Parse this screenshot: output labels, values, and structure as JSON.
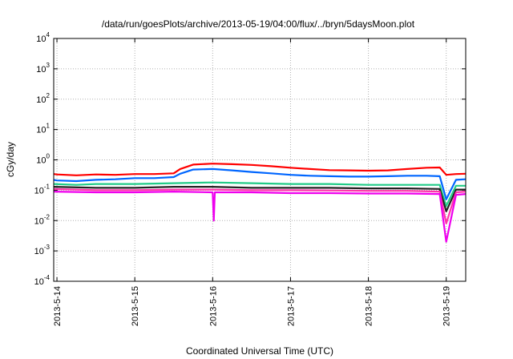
{
  "chart_data": {
    "type": "line",
    "title": "/data/run/goesPlots/archive/2013-05-19/04:00/flux/../bryn/5daysMoon.plot",
    "xlabel": "Coordinated Universal Time (UTC)",
    "ylabel": "cGy/day",
    "yscale": "log",
    "ylim": [
      0.0001,
      10000
    ],
    "xlim": [
      "2013-05-13T23:00",
      "2013-05-19T06:00"
    ],
    "y_ticks": [
      {
        "base": "10",
        "exp": "-4"
      },
      {
        "base": "10",
        "exp": "-3"
      },
      {
        "base": "10",
        "exp": "-2"
      },
      {
        "base": "10",
        "exp": "-1"
      },
      {
        "base": "10",
        "exp": "0"
      },
      {
        "base": "10",
        "exp": "1"
      },
      {
        "base": "10",
        "exp": "2"
      },
      {
        "base": "10",
        "exp": "3"
      },
      {
        "base": "10",
        "exp": "4"
      }
    ],
    "x_ticks": [
      "2013-5-14",
      "2013-5-15",
      "2013-5-16",
      "2013-5-17",
      "2013-5-18",
      "2013-5-19"
    ],
    "grid": true,
    "series": [
      {
        "color": "#ff0000",
        "points": [
          [
            "2013-05-13T23:00",
            0.34
          ],
          [
            "2013-05-14T00:00",
            0.33
          ],
          [
            "2013-05-14T06:00",
            0.31
          ],
          [
            "2013-05-14T12:00",
            0.33
          ],
          [
            "2013-05-14T18:00",
            0.32
          ],
          [
            "2013-05-15T00:00",
            0.34
          ],
          [
            "2013-05-15T06:00",
            0.34
          ],
          [
            "2013-05-15T12:00",
            0.36
          ],
          [
            "2013-05-15T14:00",
            0.5
          ],
          [
            "2013-05-15T18:00",
            0.7
          ],
          [
            "2013-05-16T00:00",
            0.75
          ],
          [
            "2013-05-16T06:00",
            0.72
          ],
          [
            "2013-05-16T12:00",
            0.68
          ],
          [
            "2013-05-16T18:00",
            0.62
          ],
          [
            "2013-05-17T00:00",
            0.55
          ],
          [
            "2013-05-17T06:00",
            0.5
          ],
          [
            "2013-05-17T12:00",
            0.46
          ],
          [
            "2013-05-17T18:00",
            0.45
          ],
          [
            "2013-05-18T00:00",
            0.44
          ],
          [
            "2013-05-18T06:00",
            0.45
          ],
          [
            "2013-05-18T12:00",
            0.5
          ],
          [
            "2013-05-18T18:00",
            0.55
          ],
          [
            "2013-05-18T22:00",
            0.56
          ],
          [
            "2013-05-19T00:00",
            0.32
          ],
          [
            "2013-05-19T03:00",
            0.34
          ],
          [
            "2013-05-19T06:00",
            0.35
          ]
        ]
      },
      {
        "color": "#0066ff",
        "points": [
          [
            "2013-05-13T23:00",
            0.22
          ],
          [
            "2013-05-14T00:00",
            0.21
          ],
          [
            "2013-05-14T06:00",
            0.2
          ],
          [
            "2013-05-14T12:00",
            0.22
          ],
          [
            "2013-05-14T18:00",
            0.23
          ],
          [
            "2013-05-15T00:00",
            0.25
          ],
          [
            "2013-05-15T06:00",
            0.25
          ],
          [
            "2013-05-15T12:00",
            0.27
          ],
          [
            "2013-05-15T14:00",
            0.35
          ],
          [
            "2013-05-15T18:00",
            0.48
          ],
          [
            "2013-05-16T00:00",
            0.5
          ],
          [
            "2013-05-16T06:00",
            0.45
          ],
          [
            "2013-05-16T12:00",
            0.4
          ],
          [
            "2013-05-16T18:00",
            0.36
          ],
          [
            "2013-05-17T00:00",
            0.32
          ],
          [
            "2013-05-17T06:00",
            0.3
          ],
          [
            "2013-05-17T12:00",
            0.29
          ],
          [
            "2013-05-17T18:00",
            0.28
          ],
          [
            "2013-05-18T00:00",
            0.28
          ],
          [
            "2013-05-18T06:00",
            0.29
          ],
          [
            "2013-05-18T12:00",
            0.3
          ],
          [
            "2013-05-18T18:00",
            0.3
          ],
          [
            "2013-05-18T22:00",
            0.29
          ],
          [
            "2013-05-19T00:00",
            0.05
          ],
          [
            "2013-05-19T03:00",
            0.22
          ],
          [
            "2013-05-19T06:00",
            0.23
          ]
        ]
      },
      {
        "color": "#22cc88",
        "points": [
          [
            "2013-05-13T23:00",
            0.16
          ],
          [
            "2013-05-14T06:00",
            0.15
          ],
          [
            "2013-05-14T12:00",
            0.16
          ],
          [
            "2013-05-15T00:00",
            0.16
          ],
          [
            "2013-05-15T12:00",
            0.17
          ],
          [
            "2013-05-16T00:00",
            0.18
          ],
          [
            "2013-05-16T12:00",
            0.17
          ],
          [
            "2013-05-17T00:00",
            0.16
          ],
          [
            "2013-05-17T12:00",
            0.16
          ],
          [
            "2013-05-18T00:00",
            0.15
          ],
          [
            "2013-05-18T12:00",
            0.15
          ],
          [
            "2013-05-18T22:00",
            0.15
          ],
          [
            "2013-05-19T00:00",
            0.03
          ],
          [
            "2013-05-19T03:00",
            0.14
          ],
          [
            "2013-05-19T06:00",
            0.14
          ]
        ]
      },
      {
        "color": "#222222",
        "points": [
          [
            "2013-05-13T23:00",
            0.13
          ],
          [
            "2013-05-14T12:00",
            0.12
          ],
          [
            "2013-05-15T00:00",
            0.12
          ],
          [
            "2013-05-15T12:00",
            0.13
          ],
          [
            "2013-05-16T00:00",
            0.13
          ],
          [
            "2013-05-16T12:00",
            0.12
          ],
          [
            "2013-05-17T00:00",
            0.12
          ],
          [
            "2013-05-17T12:00",
            0.12
          ],
          [
            "2013-05-18T00:00",
            0.115
          ],
          [
            "2013-05-18T12:00",
            0.115
          ],
          [
            "2013-05-18T22:00",
            0.11
          ],
          [
            "2013-05-19T00:00",
            0.02
          ],
          [
            "2013-05-19T03:00",
            0.105
          ],
          [
            "2013-05-19T06:00",
            0.105
          ]
        ]
      },
      {
        "color": "#ff33aa",
        "points": [
          [
            "2013-05-13T23:00",
            0.11
          ],
          [
            "2013-05-14T12:00",
            0.1
          ],
          [
            "2013-05-15T00:00",
            0.1
          ],
          [
            "2013-05-15T12:00",
            0.105
          ],
          [
            "2013-05-16T00:00",
            0.105
          ],
          [
            "2013-05-16T12:00",
            0.1
          ],
          [
            "2013-05-17T00:00",
            0.1
          ],
          [
            "2013-05-17T12:00",
            0.098
          ],
          [
            "2013-05-18T00:00",
            0.095
          ],
          [
            "2013-05-18T12:00",
            0.095
          ],
          [
            "2013-05-18T22:00",
            0.09
          ],
          [
            "2013-05-19T00:00",
            0.008
          ],
          [
            "2013-05-19T03:00",
            0.085
          ],
          [
            "2013-05-19T06:00",
            0.09
          ]
        ]
      },
      {
        "color": "#ee00ee",
        "points": [
          [
            "2013-05-13T23:00",
            0.09
          ],
          [
            "2013-05-14T12:00",
            0.085
          ],
          [
            "2013-05-15T00:00",
            0.085
          ],
          [
            "2013-05-15T12:00",
            0.09
          ],
          [
            "2013-05-16T00:00",
            0.085
          ],
          [
            "2013-05-16T00:20",
            0.01
          ],
          [
            "2013-05-16T00:40",
            0.085
          ],
          [
            "2013-05-16T12:00",
            0.085
          ],
          [
            "2013-05-17T00:00",
            0.08
          ],
          [
            "2013-05-17T12:00",
            0.08
          ],
          [
            "2013-05-18T00:00",
            0.078
          ],
          [
            "2013-05-18T12:00",
            0.078
          ],
          [
            "2013-05-18T22:00",
            0.075
          ],
          [
            "2013-05-19T00:00",
            0.002
          ],
          [
            "2013-05-19T03:00",
            0.07
          ],
          [
            "2013-05-19T06:00",
            0.075
          ]
        ]
      }
    ]
  }
}
